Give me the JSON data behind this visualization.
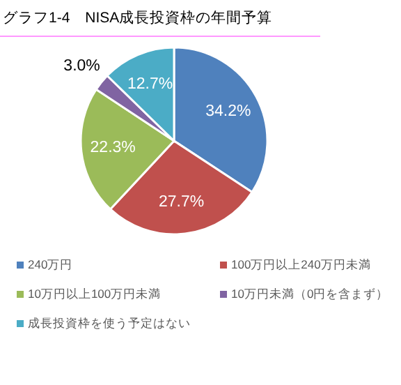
{
  "chart_data": {
    "type": "pie",
    "title": "グラフ1-4　NISA成長投資枠の年間予算",
    "categories": [
      "240万円",
      "100万円以上240万円未満",
      "10万円以上100万円未満",
      "10万円未満（0円を含まず）",
      "成長投資枠を使う予定はない"
    ],
    "values": [
      34.2,
      27.7,
      22.3,
      3.0,
      12.7
    ],
    "colors": [
      "#4f81bd",
      "#c0504d",
      "#9bbb59",
      "#8064a2",
      "#4bacc6"
    ],
    "value_labels": [
      "34.2%",
      "27.7%",
      "22.3%",
      "3.0%",
      "12.7%"
    ],
    "legend": "bottom"
  }
}
